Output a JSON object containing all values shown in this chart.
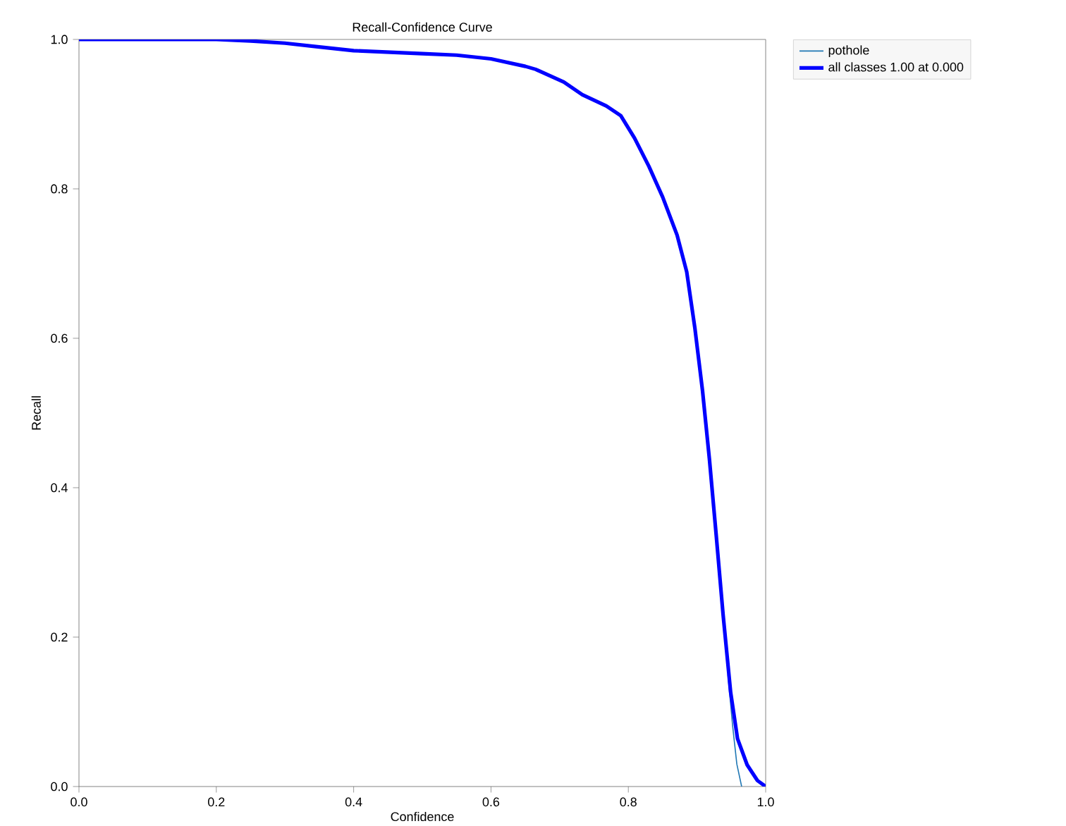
{
  "chart_data": {
    "type": "line",
    "title": "Recall-Confidence Curve",
    "xlabel": "Confidence",
    "ylabel": "Recall",
    "xlim": [
      0.0,
      1.0
    ],
    "ylim": [
      0.0,
      1.0
    ],
    "xticks": [
      {
        "value": 0,
        "label": "0.0"
      },
      0.2,
      0.4,
      0.6,
      0.8,
      {
        "value": 1,
        "label": "1.0"
      }
    ],
    "yticks": [
      {
        "value": 0,
        "label": "0.0"
      },
      0.2,
      0.4,
      0.6,
      0.8,
      {
        "value": 1,
        "label": "1.0"
      }
    ],
    "grid": false,
    "legend": "top right",
    "line_style": "solid",
    "marker": "none",
    "series": [
      {
        "name": "pothole",
        "color": "#1f77b4",
        "x": [
          0.945,
          0.952,
          0.958,
          0.965
        ],
        "values": [
          0.15,
          0.08,
          0.03,
          0
        ]
      },
      {
        "name": "all classes 1.00 at 0.000",
        "color": "#0000ff",
        "x": [
          0,
          0.1,
          0.2,
          0.25,
          0.3,
          0.35,
          0.4,
          0.5,
          0.55,
          0.6,
          0.65,
          0.665,
          0.706,
          0.733,
          0.768,
          0.789,
          0.809,
          0.83,
          0.85,
          0.871,
          0.885,
          0.897,
          0.908,
          0.918,
          0.928,
          0.938,
          0.949,
          0.959,
          0.973,
          0.988,
          1.0
        ],
        "values": [
          1,
          1,
          1,
          0.998,
          0.995,
          0.99,
          0.985,
          0.981,
          0.979,
          0.974,
          0.964,
          0.96,
          0.943,
          0.926,
          0.911,
          0.898,
          0.868,
          0.83,
          0.789,
          0.738,
          0.689,
          0.613,
          0.53,
          0.439,
          0.336,
          0.23,
          0.126,
          0.064,
          0.029,
          0.008,
          0
        ]
      }
    ]
  }
}
